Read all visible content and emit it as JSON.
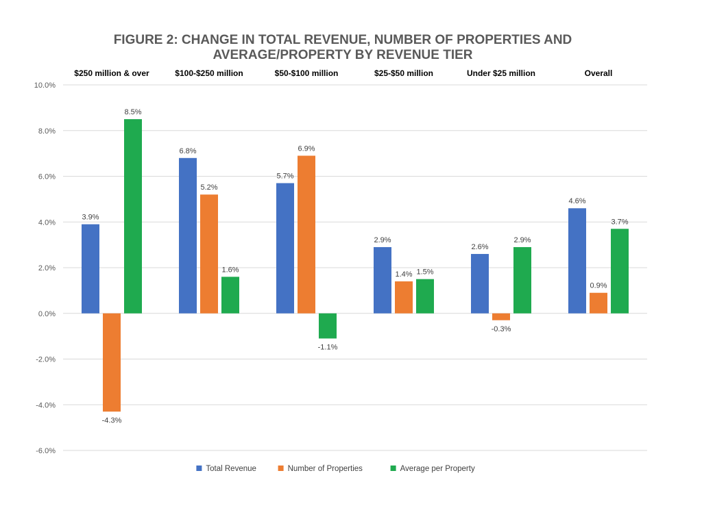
{
  "chart_data": {
    "type": "bar",
    "title_lines": [
      "FIGURE 2: CHANGE IN TOTAL REVENUE, NUMBER OF PROPERTIES AND",
      "AVERAGE/PROPERTY BY REVENUE TIER"
    ],
    "categories": [
      "$250 million & over",
      "$100-$250 million",
      "$50-$100 million",
      "$25-$50 million",
      "Under $25 million",
      "Overall"
    ],
    "series": [
      {
        "name": "Total Revenue",
        "color": "#4472c4",
        "values": [
          3.9,
          6.8,
          5.7,
          2.9,
          2.6,
          4.6
        ]
      },
      {
        "name": "Number of Properties",
        "color": "#ed7d31",
        "values": [
          -4.3,
          5.2,
          6.9,
          1.4,
          -0.3,
          0.9
        ]
      },
      {
        "name": "Average per Property",
        "color": "#1faa4f",
        "values": [
          8.5,
          1.6,
          -1.1,
          1.5,
          2.9,
          3.7
        ]
      }
    ],
    "ylim": [
      -6,
      10
    ],
    "yticks": [
      -6,
      -4,
      -2,
      0,
      2,
      4,
      6,
      8,
      10
    ],
    "ytick_labels": [
      "-6.0%",
      "-4.0%",
      "-2.0%",
      "0.0%",
      "2.0%",
      "4.0%",
      "6.0%",
      "8.0%",
      "10.0%"
    ],
    "data_labels": [
      [
        "3.9%",
        "6.8%",
        "5.7%",
        "2.9%",
        "2.6%",
        "4.6%"
      ],
      [
        "-4.3%",
        "5.2%",
        "6.9%",
        "1.4%",
        "-0.3%",
        "0.9%"
      ],
      [
        "8.5%",
        "1.6%",
        "-1.1%",
        "1.5%",
        "2.9%",
        "3.7%"
      ]
    ],
    "xlabel": "",
    "ylabel": "",
    "grid": true,
    "legend_position": "bottom-center",
    "category_label_position": "top"
  }
}
